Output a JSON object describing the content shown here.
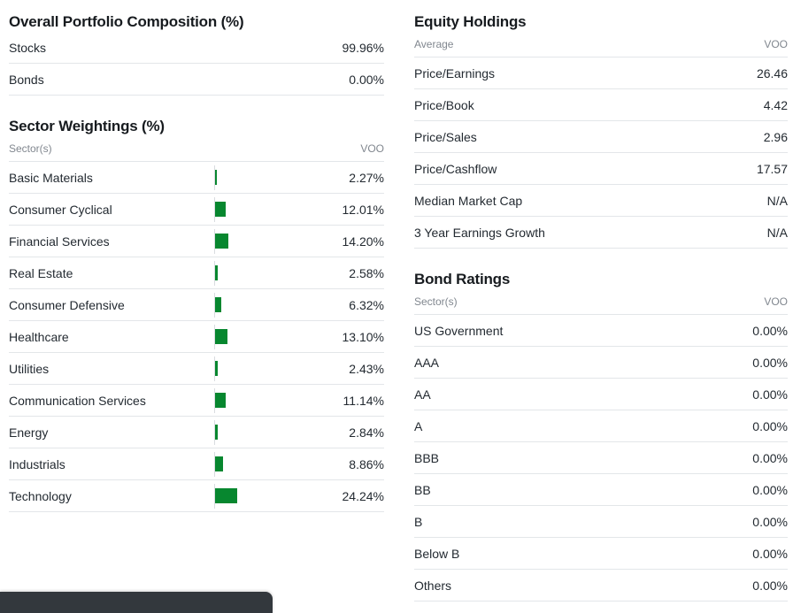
{
  "colors": {
    "bar_green": "#07872f",
    "toast_bg": "#33383d"
  },
  "sections": {
    "portfolio": {
      "title": "Overall Portfolio Composition (%)",
      "rows": [
        {
          "label": "Stocks",
          "value": "99.96%"
        },
        {
          "label": "Bonds",
          "value": "0.00%"
        }
      ]
    },
    "sectors": {
      "title": "Sector Weightings (%)",
      "col_label": "Sector(s)",
      "col_value": "VOO",
      "rows": [
        {
          "label": "Basic Materials",
          "value": "2.27%",
          "pct": 2.27
        },
        {
          "label": "Consumer Cyclical",
          "value": "12.01%",
          "pct": 12.01
        },
        {
          "label": "Financial Services",
          "value": "14.20%",
          "pct": 14.2
        },
        {
          "label": "Real Estate",
          "value": "2.58%",
          "pct": 2.58
        },
        {
          "label": "Consumer Defensive",
          "value": "6.32%",
          "pct": 6.32
        },
        {
          "label": "Healthcare",
          "value": "13.10%",
          "pct": 13.1
        },
        {
          "label": "Utilities",
          "value": "2.43%",
          "pct": 2.43
        },
        {
          "label": "Communication Services",
          "value": "11.14%",
          "pct": 11.14
        },
        {
          "label": "Energy",
          "value": "2.84%",
          "pct": 2.84
        },
        {
          "label": "Industrials",
          "value": "8.86%",
          "pct": 8.86
        },
        {
          "label": "Technology",
          "value": "24.24%",
          "pct": 24.24
        }
      ]
    },
    "equity": {
      "title": "Equity Holdings",
      "col_label": "Average",
      "col_value": "VOO",
      "rows": [
        {
          "label": "Price/Earnings",
          "value": "26.46"
        },
        {
          "label": "Price/Book",
          "value": "4.42"
        },
        {
          "label": "Price/Sales",
          "value": "2.96"
        },
        {
          "label": "Price/Cashflow",
          "value": "17.57"
        },
        {
          "label": "Median Market Cap",
          "value": "N/A"
        },
        {
          "label": "3 Year Earnings Growth",
          "value": "N/A"
        }
      ]
    },
    "bonds": {
      "title": "Bond Ratings",
      "col_label": "Sector(s)",
      "col_value": "VOO",
      "rows": [
        {
          "label": "US Government",
          "value": "0.00%"
        },
        {
          "label": "AAA",
          "value": "0.00%"
        },
        {
          "label": "AA",
          "value": "0.00%"
        },
        {
          "label": "A",
          "value": "0.00%"
        },
        {
          "label": "BBB",
          "value": "0.00%"
        },
        {
          "label": "BB",
          "value": "0.00%"
        },
        {
          "label": "B",
          "value": "0.00%"
        },
        {
          "label": "Below B",
          "value": "0.00%"
        },
        {
          "label": "Others",
          "value": "0.00%"
        }
      ]
    }
  },
  "chart_data": {
    "type": "bar",
    "title": "Sector Weightings (%)",
    "series_name": "VOO",
    "categories": [
      "Basic Materials",
      "Consumer Cyclical",
      "Financial Services",
      "Real Estate",
      "Consumer Defensive",
      "Healthcare",
      "Utilities",
      "Communication Services",
      "Energy",
      "Industrials",
      "Technology"
    ],
    "values": [
      2.27,
      12.01,
      14.2,
      2.58,
      6.32,
      13.1,
      2.43,
      11.14,
      2.84,
      8.86,
      24.24
    ],
    "orientation": "horizontal",
    "bar_color": "#07872f",
    "xlabel": "",
    "ylabel": "",
    "grid": false,
    "legend": false
  }
}
